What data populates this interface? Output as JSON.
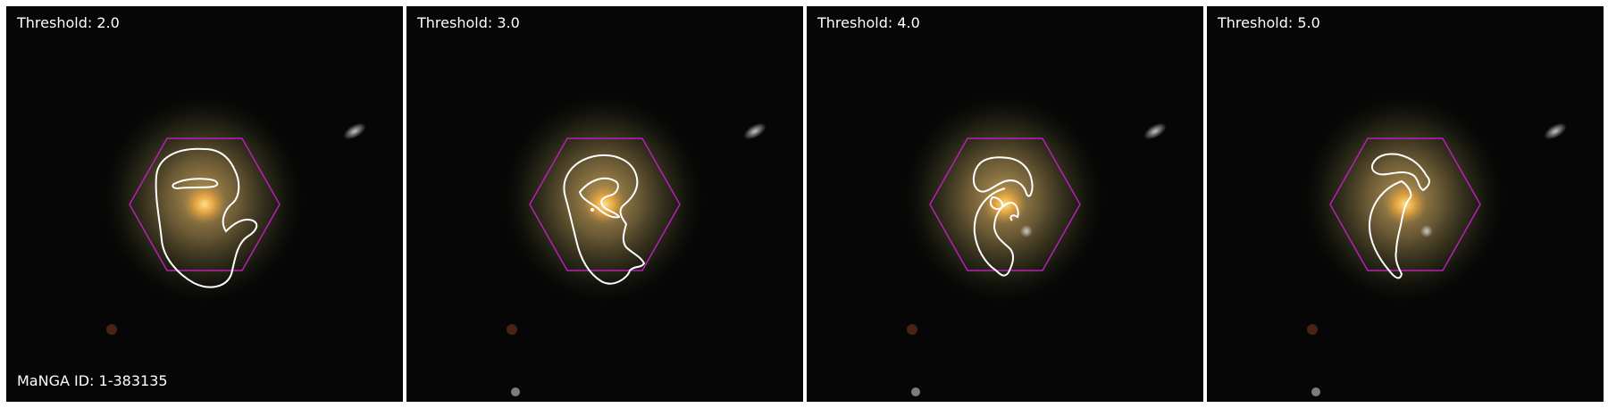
{
  "figure": {
    "manga_id": "MaNGA ID: 1-383135",
    "panels": [
      {
        "threshold_label": "Threshold: 2.0"
      },
      {
        "threshold_label": "Threshold: 3.0"
      },
      {
        "threshold_label": "Threshold: 4.0"
      },
      {
        "threshold_label": "Threshold: 5.0"
      }
    ],
    "colors": {
      "hexagon": "#b81fb8",
      "contour": "#ffffff",
      "galaxy_core": "#e8a640",
      "background": "#050605"
    }
  }
}
